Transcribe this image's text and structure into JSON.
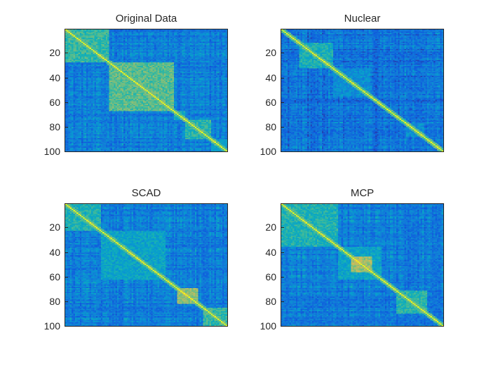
{
  "chart_data": [
    {
      "type": "heatmap",
      "title": "Original Data",
      "matrix_size": 100,
      "ylim": [
        1,
        100
      ],
      "yticks": [
        20,
        40,
        60,
        80,
        100
      ],
      "ytick_labels": [
        "20",
        "40",
        "60",
        "80",
        "100"
      ],
      "colormap": "parula",
      "diagonal_value": 1.0,
      "blocks": [
        {
          "rows": [
            1,
            27
          ],
          "level": 0.55
        },
        {
          "rows": [
            28,
            67
          ],
          "level": 0.62
        },
        {
          "rows": [
            68,
            74
          ],
          "level": 0.45
        },
        {
          "rows": [
            75,
            90
          ],
          "level": 0.52
        },
        {
          "rows": [
            91,
            100
          ],
          "level": 0.4
        }
      ],
      "background_level": 0.25
    },
    {
      "type": "heatmap",
      "title": "Nuclear",
      "matrix_size": 100,
      "ylim": [
        1,
        100
      ],
      "yticks": [
        20,
        40,
        60,
        80,
        100
      ],
      "ytick_labels": [
        "20",
        "40",
        "60",
        "80",
        "100"
      ],
      "colormap": "parula",
      "diagonal_value": 1.0,
      "blocks": [
        {
          "rows": [
            12,
            32
          ],
          "level": 0.48
        },
        {
          "rows": [
            33,
            55
          ],
          "level": 0.32
        },
        {
          "rows": [
            78,
            88
          ],
          "level": 0.34
        }
      ],
      "background_level": 0.2
    },
    {
      "type": "heatmap",
      "title": "SCAD",
      "matrix_size": 100,
      "ylim": [
        1,
        100
      ],
      "yticks": [
        20,
        40,
        60,
        80,
        100
      ],
      "ytick_labels": [
        "20",
        "40",
        "60",
        "80",
        "100"
      ],
      "colormap": "parula",
      "diagonal_value": 1.0,
      "blocks": [
        {
          "rows": [
            1,
            22
          ],
          "level": 0.5
        },
        {
          "rows": [
            23,
            62
          ],
          "level": 0.42
        },
        {
          "rows": [
            70,
            82
          ],
          "level": 0.72
        },
        {
          "rows": [
            86,
            100
          ],
          "level": 0.55
        }
      ],
      "background_level": 0.25
    },
    {
      "type": "heatmap",
      "title": "MCP",
      "matrix_size": 100,
      "ylim": [
        1,
        100
      ],
      "yticks": [
        20,
        40,
        60,
        80,
        100
      ],
      "ytick_labels": [
        "20",
        "40",
        "60",
        "80",
        "100"
      ],
      "colormap": "parula",
      "diagonal_value": 1.0,
      "blocks": [
        {
          "rows": [
            1,
            35
          ],
          "level": 0.5
        },
        {
          "rows": [
            36,
            62
          ],
          "level": 0.42
        },
        {
          "rows": [
            44,
            56
          ],
          "level": 0.75
        },
        {
          "rows": [
            72,
            90
          ],
          "level": 0.52
        }
      ],
      "background_level": 0.25
    }
  ]
}
